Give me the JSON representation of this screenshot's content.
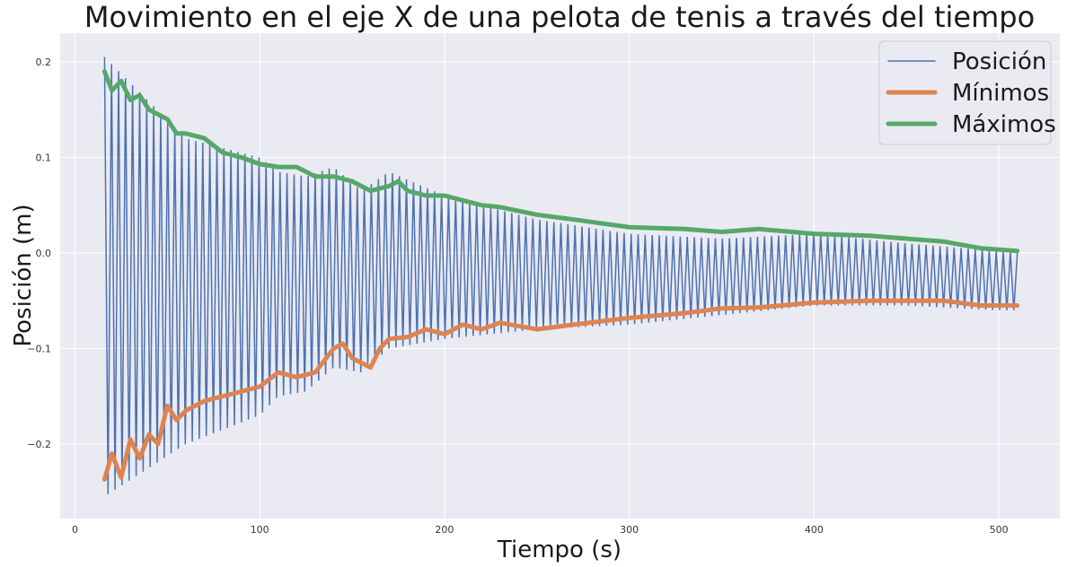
{
  "chart_data": {
    "type": "line",
    "title": "Movimiento en el eje X de una pelota de tenis a través del tiempo",
    "xlabel": "Tiempo (s)",
    "ylabel": "Posición (m)",
    "xlim": [
      -8,
      533
    ],
    "ylim": [
      -0.278,
      0.23
    ],
    "xticks": [
      0,
      100,
      200,
      300,
      400,
      500
    ],
    "xtick_labels": [
      "0",
      "100",
      "200",
      "300",
      "400",
      "500"
    ],
    "yticks": [
      -0.2,
      -0.1,
      0.0,
      0.1,
      0.2
    ],
    "ytick_labels": [
      "−0.2",
      "−0.1",
      "0.0",
      "0.1",
      "0.2"
    ],
    "grid": true,
    "legend_position": "top-right",
    "series": [
      {
        "name": "Posición",
        "color": "#4c72b0",
        "oscillation_period_s": 3.8,
        "x": [
          16,
          60,
          100,
          110,
          125,
          140,
          155,
          170,
          200,
          250,
          300,
          350,
          400,
          450,
          500,
          510
        ],
        "upper_envelope": [
          0.205,
          0.12,
          0.1,
          0.085,
          0.08,
          0.09,
          0.065,
          0.085,
          0.06,
          0.035,
          0.02,
          0.015,
          0.02,
          0.01,
          0.002,
          0.0
        ],
        "lower_envelope": [
          -0.255,
          -0.2,
          -0.17,
          -0.15,
          -0.145,
          -0.12,
          -0.125,
          -0.1,
          -0.09,
          -0.08,
          -0.075,
          -0.065,
          -0.055,
          -0.055,
          -0.06,
          -0.06
        ]
      },
      {
        "name": "Mínimos",
        "color": "#dd8452",
        "x": [
          16,
          20,
          25,
          30,
          35,
          40,
          45,
          50,
          55,
          60,
          70,
          80,
          90,
          100,
          110,
          120,
          130,
          140,
          145,
          150,
          160,
          165,
          170,
          180,
          190,
          200,
          210,
          220,
          230,
          250,
          270,
          300,
          330,
          350,
          370,
          400,
          430,
          450,
          470,
          490,
          510
        ],
        "y": [
          -0.237,
          -0.21,
          -0.235,
          -0.195,
          -0.215,
          -0.19,
          -0.2,
          -0.16,
          -0.175,
          -0.165,
          -0.155,
          -0.15,
          -0.145,
          -0.14,
          -0.125,
          -0.13,
          -0.125,
          -0.1,
          -0.095,
          -0.11,
          -0.12,
          -0.1,
          -0.09,
          -0.088,
          -0.08,
          -0.085,
          -0.075,
          -0.08,
          -0.073,
          -0.08,
          -0.075,
          -0.068,
          -0.063,
          -0.058,
          -0.057,
          -0.052,
          -0.05,
          -0.05,
          -0.05,
          -0.055,
          -0.055
        ]
      },
      {
        "name": "Máximos",
        "color": "#55a868",
        "x": [
          16,
          20,
          25,
          30,
          35,
          40,
          45,
          50,
          55,
          60,
          70,
          80,
          90,
          100,
          110,
          120,
          130,
          140,
          150,
          160,
          170,
          175,
          180,
          190,
          200,
          210,
          220,
          230,
          250,
          270,
          300,
          330,
          350,
          370,
          400,
          430,
          450,
          470,
          490,
          510
        ],
        "y": [
          0.19,
          0.17,
          0.18,
          0.16,
          0.165,
          0.15,
          0.145,
          0.14,
          0.125,
          0.125,
          0.12,
          0.105,
          0.1,
          0.093,
          0.09,
          0.09,
          0.08,
          0.08,
          0.075,
          0.065,
          0.07,
          0.075,
          0.065,
          0.06,
          0.06,
          0.055,
          0.05,
          0.048,
          0.04,
          0.035,
          0.027,
          0.025,
          0.022,
          0.025,
          0.02,
          0.018,
          0.015,
          0.012,
          0.005,
          0.002
        ]
      }
    ]
  }
}
